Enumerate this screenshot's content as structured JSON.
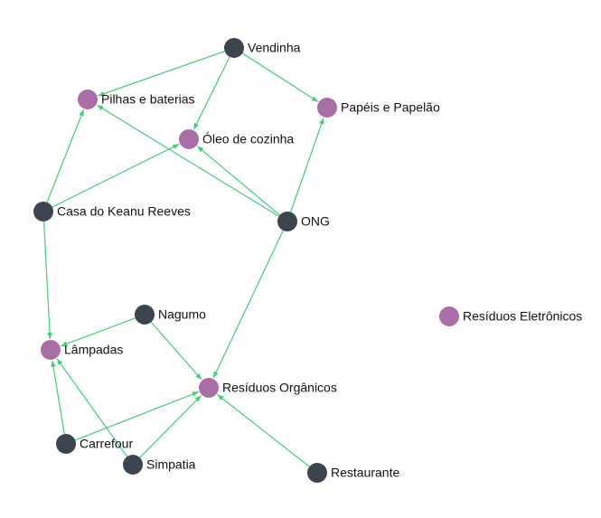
{
  "graph": {
    "colors": {
      "edge": "#3fcf74",
      "source_node": "#3b444f",
      "material_node": "#a96ea6",
      "label": "#111111"
    },
    "nodes": [
      {
        "id": "vendinha",
        "label": "Vendinha",
        "kind": "source"
      },
      {
        "id": "pilhas",
        "label": "Pilhas e baterias",
        "kind": "material"
      },
      {
        "id": "papeis",
        "label": "Papéis e Papelão",
        "kind": "material"
      },
      {
        "id": "oleo",
        "label": "Óleo de cozinha",
        "kind": "material"
      },
      {
        "id": "keanu",
        "label": "Casa do Keanu Reeves",
        "kind": "source"
      },
      {
        "id": "ong",
        "label": "ONG",
        "kind": "source"
      },
      {
        "id": "eletronicos",
        "label": "Resíduos Eletrônicos",
        "kind": "material"
      },
      {
        "id": "nagumo",
        "label": "Nagumo",
        "kind": "source"
      },
      {
        "id": "lampadas",
        "label": "Lâmpadas",
        "kind": "material"
      },
      {
        "id": "organicos",
        "label": "Resíduos Orgânicos",
        "kind": "material"
      },
      {
        "id": "carrefour",
        "label": "Carrefour",
        "kind": "source"
      },
      {
        "id": "simpatia",
        "label": "Simpatia",
        "kind": "source"
      },
      {
        "id": "restaurante",
        "label": "Restaurante",
        "kind": "source"
      }
    ],
    "edges": [
      {
        "from": "vendinha",
        "to": "pilhas"
      },
      {
        "from": "vendinha",
        "to": "oleo"
      },
      {
        "from": "vendinha",
        "to": "papeis"
      },
      {
        "from": "keanu",
        "to": "pilhas"
      },
      {
        "from": "keanu",
        "to": "oleo"
      },
      {
        "from": "keanu",
        "to": "lampadas"
      },
      {
        "from": "ong",
        "to": "pilhas"
      },
      {
        "from": "ong",
        "to": "oleo"
      },
      {
        "from": "ong",
        "to": "papeis"
      },
      {
        "from": "ong",
        "to": "organicos"
      },
      {
        "from": "nagumo",
        "to": "lampadas"
      },
      {
        "from": "nagumo",
        "to": "organicos"
      },
      {
        "from": "carrefour",
        "to": "lampadas"
      },
      {
        "from": "carrefour",
        "to": "organicos"
      },
      {
        "from": "simpatia",
        "to": "lampadas"
      },
      {
        "from": "simpatia",
        "to": "organicos"
      },
      {
        "from": "restaurante",
        "to": "organicos"
      }
    ]
  }
}
